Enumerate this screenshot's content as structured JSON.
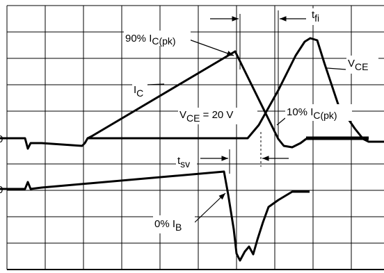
{
  "labels": {
    "ic_peak_90": {
      "main": "90% I",
      "sub": "C(pk)"
    },
    "ic": {
      "main": "I",
      "sub": "C"
    },
    "vce": {
      "main": "V",
      "sub": "CE"
    },
    "vce_20": {
      "main": "V",
      "sub": "CE",
      "rest": " = 20 V"
    },
    "ic_peak_10": {
      "main": "10% I",
      "sub": "C(pk)"
    },
    "tsv": {
      "main": "t",
      "sub": "sv"
    },
    "tfi": {
      "main": "t",
      "sub": "fi"
    },
    "ib_0": {
      "main": "0% I",
      "sub": "B"
    }
  },
  "zero_markers": [
    "0",
    "0"
  ]
}
